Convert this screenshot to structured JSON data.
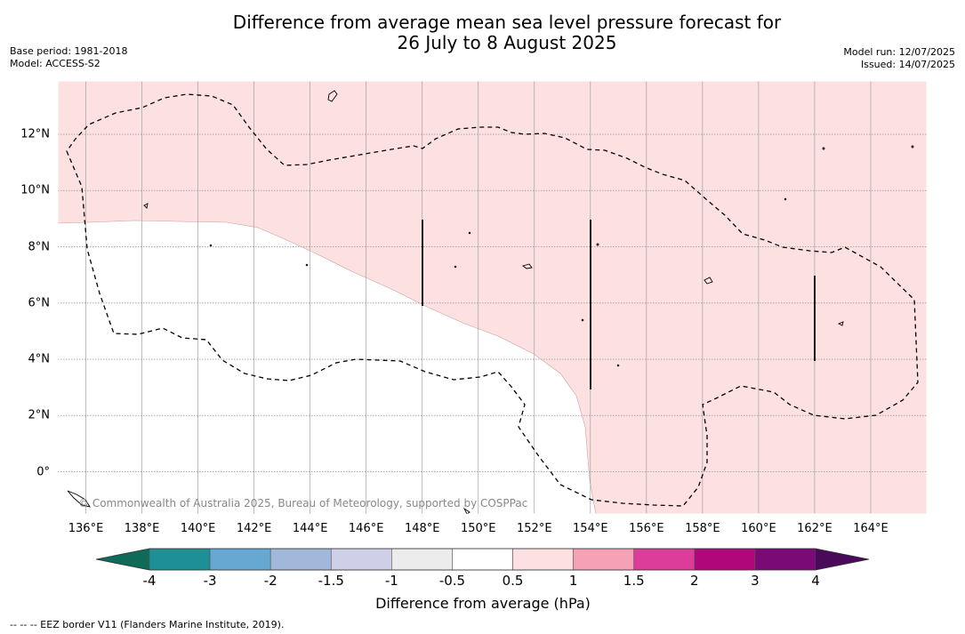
{
  "title_line1": "Difference from average mean sea level pressure forecast for",
  "title_line2": "26 July to 8 August 2025",
  "meta_left": {
    "base_period": "Base period: 1981-2018",
    "model": "Model: ACCESS-S2"
  },
  "meta_right": {
    "model_run": "Model run: 12/07/2025",
    "issued": "Issued: 14/07/2025"
  },
  "copyright": "© Commonwealth of Australia 2025, Bureau of Meteorology, supported by COSPPac",
  "lon_labels": [
    "136°E",
    "138°E",
    "140°E",
    "142°E",
    "144°E",
    "146°E",
    "148°E",
    "150°E",
    "152°E",
    "154°E",
    "156°E",
    "158°E",
    "160°E",
    "162°E",
    "164°E"
  ],
  "lat_labels": [
    "12°N",
    "10°N",
    "8°N",
    "6°N",
    "4°N",
    "2°N",
    "0°"
  ],
  "colorbar": {
    "title": "Difference from average (hPa)",
    "tick_labels": [
      "-4",
      "-3",
      "-2",
      "-1.5",
      "-1",
      "-0.5",
      "0.5",
      "1",
      "1.5",
      "2",
      "3",
      "4"
    ],
    "colors": [
      "#1f8f96",
      "#66a8d2",
      "#a2b8da",
      "#cfd0e8",
      "#ececec",
      "#ffffff",
      "#fde0e0",
      "#f6a2b6",
      "#dc3c9a",
      "#b0077a",
      "#7a0a76"
    ],
    "under_color": "#0f6a5a",
    "over_color": "#4a0a5a"
  },
  "legend_footer": "-- -- -- EEZ border V11 (Flanders Marine Institute, 2019).",
  "map_colors": {
    "positive_fill": "#fde0e0",
    "grid": "#a0a0a0",
    "eez_line": "#000000"
  }
}
